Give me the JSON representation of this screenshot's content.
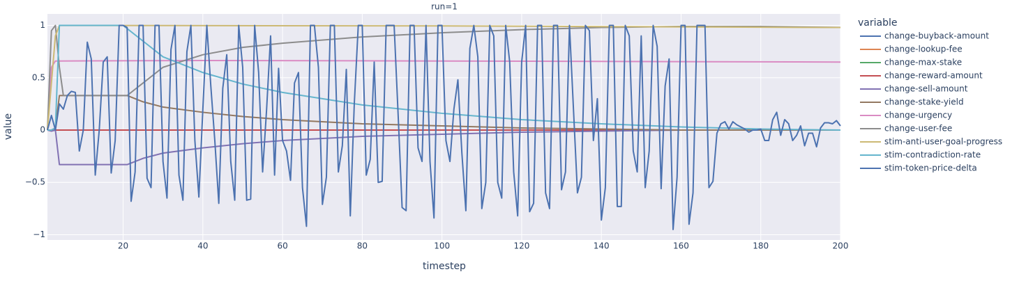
{
  "chart_data": {
    "type": "line",
    "title": "run=1",
    "x_label": "timestep",
    "y_label": "value",
    "legend_title": "variable",
    "legend": "right",
    "grid": true,
    "xlim": [
      1,
      200
    ],
    "xticks": [
      20,
      40,
      60,
      80,
      100,
      120,
      140,
      160,
      180,
      200
    ],
    "ylim": [
      -1.05,
      1.11
    ],
    "yticks": [
      {
        "value": -1,
        "label": "−1"
      },
      {
        "value": -0.5,
        "label": "−0.5"
      },
      0,
      0.5,
      1
    ],
    "series": [
      {
        "name": "change-buyback-amount",
        "color": "rgb(76,114,176)",
        "x": [
          1,
          200
        ],
        "values": [
          0,
          0
        ]
      },
      {
        "name": "change-lookup-fee",
        "color": "rgb(221,132,82)",
        "x": [
          1,
          200
        ],
        "values": [
          0,
          0
        ]
      },
      {
        "name": "change-max-stake",
        "color": "rgb(85,168,104)",
        "x": [
          1,
          200
        ],
        "values": [
          0,
          0
        ]
      },
      {
        "name": "change-reward-amount",
        "color": "rgb(196,78,82)",
        "x": [
          1,
          200
        ],
        "values": [
          0,
          0
        ]
      },
      {
        "name": "change-sell-amount",
        "color": "rgb(129,114,179)",
        "x": [
          1,
          2,
          3,
          4,
          21,
          25,
          30,
          40,
          50,
          60,
          80,
          100,
          120,
          140,
          160,
          180,
          200
        ],
        "values": [
          0,
          -0.01,
          0,
          -0.33,
          -0.33,
          -0.27,
          -0.22,
          -0.17,
          -0.13,
          -0.1,
          -0.06,
          -0.04,
          -0.02,
          -0.01,
          0,
          0,
          0
        ]
      },
      {
        "name": "change-stake-yield",
        "color": "rgb(147,120,96)",
        "x": [
          1,
          2,
          3,
          4,
          21,
          25,
          30,
          40,
          50,
          60,
          80,
          100,
          120,
          140,
          160,
          180,
          200
        ],
        "values": [
          0,
          0,
          0.02,
          0.33,
          0.33,
          0.27,
          0.22,
          0.17,
          0.13,
          0.1,
          0.06,
          0.04,
          0.02,
          0.01,
          0,
          0,
          0
        ]
      },
      {
        "name": "change-urgency",
        "color": "rgb(218,139,195)",
        "x": [
          1,
          2,
          3,
          40,
          100,
          200
        ],
        "values": [
          0,
          0.6,
          0.66,
          0.665,
          0.66,
          0.65
        ]
      },
      {
        "name": "change-user-fee",
        "color": "rgb(140,140,140)",
        "x": [
          1,
          2,
          3,
          4,
          5,
          21,
          25,
          30,
          40,
          50,
          60,
          80,
          100,
          120,
          140,
          160,
          180,
          200
        ],
        "values": [
          0,
          0.95,
          1,
          0.6,
          0.33,
          0.33,
          0.45,
          0.6,
          0.72,
          0.79,
          0.83,
          0.89,
          0.93,
          0.96,
          0.98,
          0.99,
          0.99,
          0.98
        ]
      },
      {
        "name": "stim-anti-user-goal-progress",
        "color": "rgb(204,185,116)",
        "x": [
          1,
          3,
          4,
          100,
          200
        ],
        "values": [
          0,
          0.9,
          1,
          0.995,
          0.98
        ]
      },
      {
        "name": "stim-contradiction-rate",
        "color": "rgb(100,181,205)",
        "x": [
          1,
          2,
          3,
          4,
          20,
          25,
          30,
          40,
          50,
          60,
          80,
          100,
          120,
          140,
          160,
          180,
          200
        ],
        "values": [
          0,
          0,
          0.02,
          1,
          1,
          0.85,
          0.7,
          0.55,
          0.44,
          0.36,
          0.24,
          0.16,
          0.1,
          0.06,
          0.03,
          0.01,
          0
        ]
      },
      {
        "name": "stim-token-price-delta",
        "color": "rgb(76,114,176)",
        "x": [
          1,
          2,
          3,
          4,
          5,
          6,
          7,
          8,
          9,
          10,
          11,
          12,
          13,
          14,
          15,
          16,
          17,
          18,
          19,
          20,
          21,
          22,
          23,
          24,
          25,
          26,
          27,
          28,
          29,
          30,
          31,
          32,
          33,
          34,
          35,
          36,
          37,
          38,
          39,
          40,
          41,
          42,
          43,
          44,
          45,
          46,
          47,
          48,
          49,
          50,
          51,
          52,
          53,
          54,
          55,
          56,
          57,
          58,
          59,
          60,
          61,
          62,
          63,
          64,
          65,
          66,
          67,
          68,
          69,
          70,
          71,
          72,
          73,
          74,
          75,
          76,
          77,
          78,
          79,
          80,
          81,
          82,
          83,
          84,
          85,
          86,
          87,
          88,
          89,
          90,
          91,
          92,
          93,
          94,
          95,
          96,
          97,
          98,
          99,
          100,
          101,
          102,
          103,
          104,
          105,
          106,
          107,
          108,
          109,
          110,
          111,
          112,
          113,
          114,
          115,
          116,
          117,
          118,
          119,
          120,
          121,
          122,
          123,
          124,
          125,
          126,
          127,
          128,
          129,
          130,
          131,
          132,
          133,
          134,
          135,
          136,
          137,
          138,
          139,
          140,
          141,
          142,
          143,
          144,
          145,
          146,
          147,
          148,
          149,
          150,
          151,
          152,
          153,
          154,
          155,
          156,
          157,
          158,
          159,
          160,
          161,
          162,
          163,
          164,
          165,
          166,
          167,
          168,
          169,
          170,
          171,
          172,
          173,
          174,
          175,
          176,
          177,
          178,
          179,
          180,
          181,
          182,
          183,
          184,
          185,
          186,
          187,
          188,
          189,
          190,
          191,
          192,
          193,
          194,
          195,
          196,
          197,
          198,
          199,
          200
        ],
        "values": [
          0,
          0.14,
          0,
          0.25,
          0.2,
          0.33,
          0.37,
          0.36,
          -0.2,
          0,
          0.84,
          0.68,
          -0.43,
          0,
          0.65,
          0.7,
          -0.41,
          -0.1,
          1,
          1,
          0.98,
          -0.68,
          -0.4,
          1,
          1,
          -0.46,
          -0.55,
          1,
          1,
          -0.3,
          -0.65,
          0.77,
          1,
          -0.43,
          -0.67,
          0.75,
          1,
          -0.1,
          -0.64,
          0.2,
          1,
          0.42,
          -0.1,
          -0.7,
          0.4,
          0.72,
          -0.3,
          -0.67,
          1,
          0.6,
          -0.67,
          -0.66,
          1,
          0.55,
          -0.4,
          0.2,
          0.9,
          -0.43,
          0.59,
          -0.1,
          -0.2,
          -0.48,
          0.45,
          0.55,
          -0.55,
          -0.92,
          1,
          1,
          0.6,
          -0.71,
          -0.45,
          1,
          1,
          -0.4,
          -0.15,
          0.58,
          -0.82,
          0.25,
          1,
          1,
          -0.43,
          -0.28,
          0.65,
          -0.5,
          -0.49,
          1,
          1,
          1,
          0.15,
          -0.74,
          -0.77,
          1,
          1,
          -0.17,
          -0.3,
          1,
          -0.3,
          -0.84,
          1,
          1,
          -0.1,
          -0.3,
          0.2,
          0.48,
          -0.22,
          -0.77,
          0.78,
          1,
          0.7,
          -0.75,
          -0.5,
          1,
          0.9,
          -0.5,
          -0.65,
          1,
          0.65,
          -0.4,
          -0.82,
          0.65,
          1,
          -0.78,
          -0.7,
          1,
          1,
          -0.6,
          -0.75,
          1,
          1,
          -0.57,
          -0.4,
          1,
          0.2,
          -0.6,
          -0.45,
          1,
          0.95,
          -0.1,
          0.3,
          -0.86,
          -0.55,
          1,
          1,
          -0.73,
          -0.73,
          1,
          0.9,
          -0.2,
          -0.4,
          0.9,
          -0.55,
          -0.2,
          1,
          0.8,
          -0.56,
          0.42,
          0.68,
          -0.95,
          -0.45,
          1,
          1,
          -0.9,
          -0.6,
          1,
          1,
          1,
          -0.55,
          -0.49,
          -0.03,
          0.06,
          0.08,
          0.01,
          0.08,
          0.05,
          0.03,
          0.01,
          -0.02,
          0,
          0,
          0.01,
          -0.1,
          -0.1,
          0.1,
          0.17,
          -0.05,
          0.1,
          0.06,
          -0.1,
          -0.05,
          0.04,
          -0.15,
          -0.03,
          -0.03,
          -0.16,
          0.02,
          0.07,
          0.07,
          0.06,
          0.09,
          0.04
        ]
      }
    ]
  }
}
